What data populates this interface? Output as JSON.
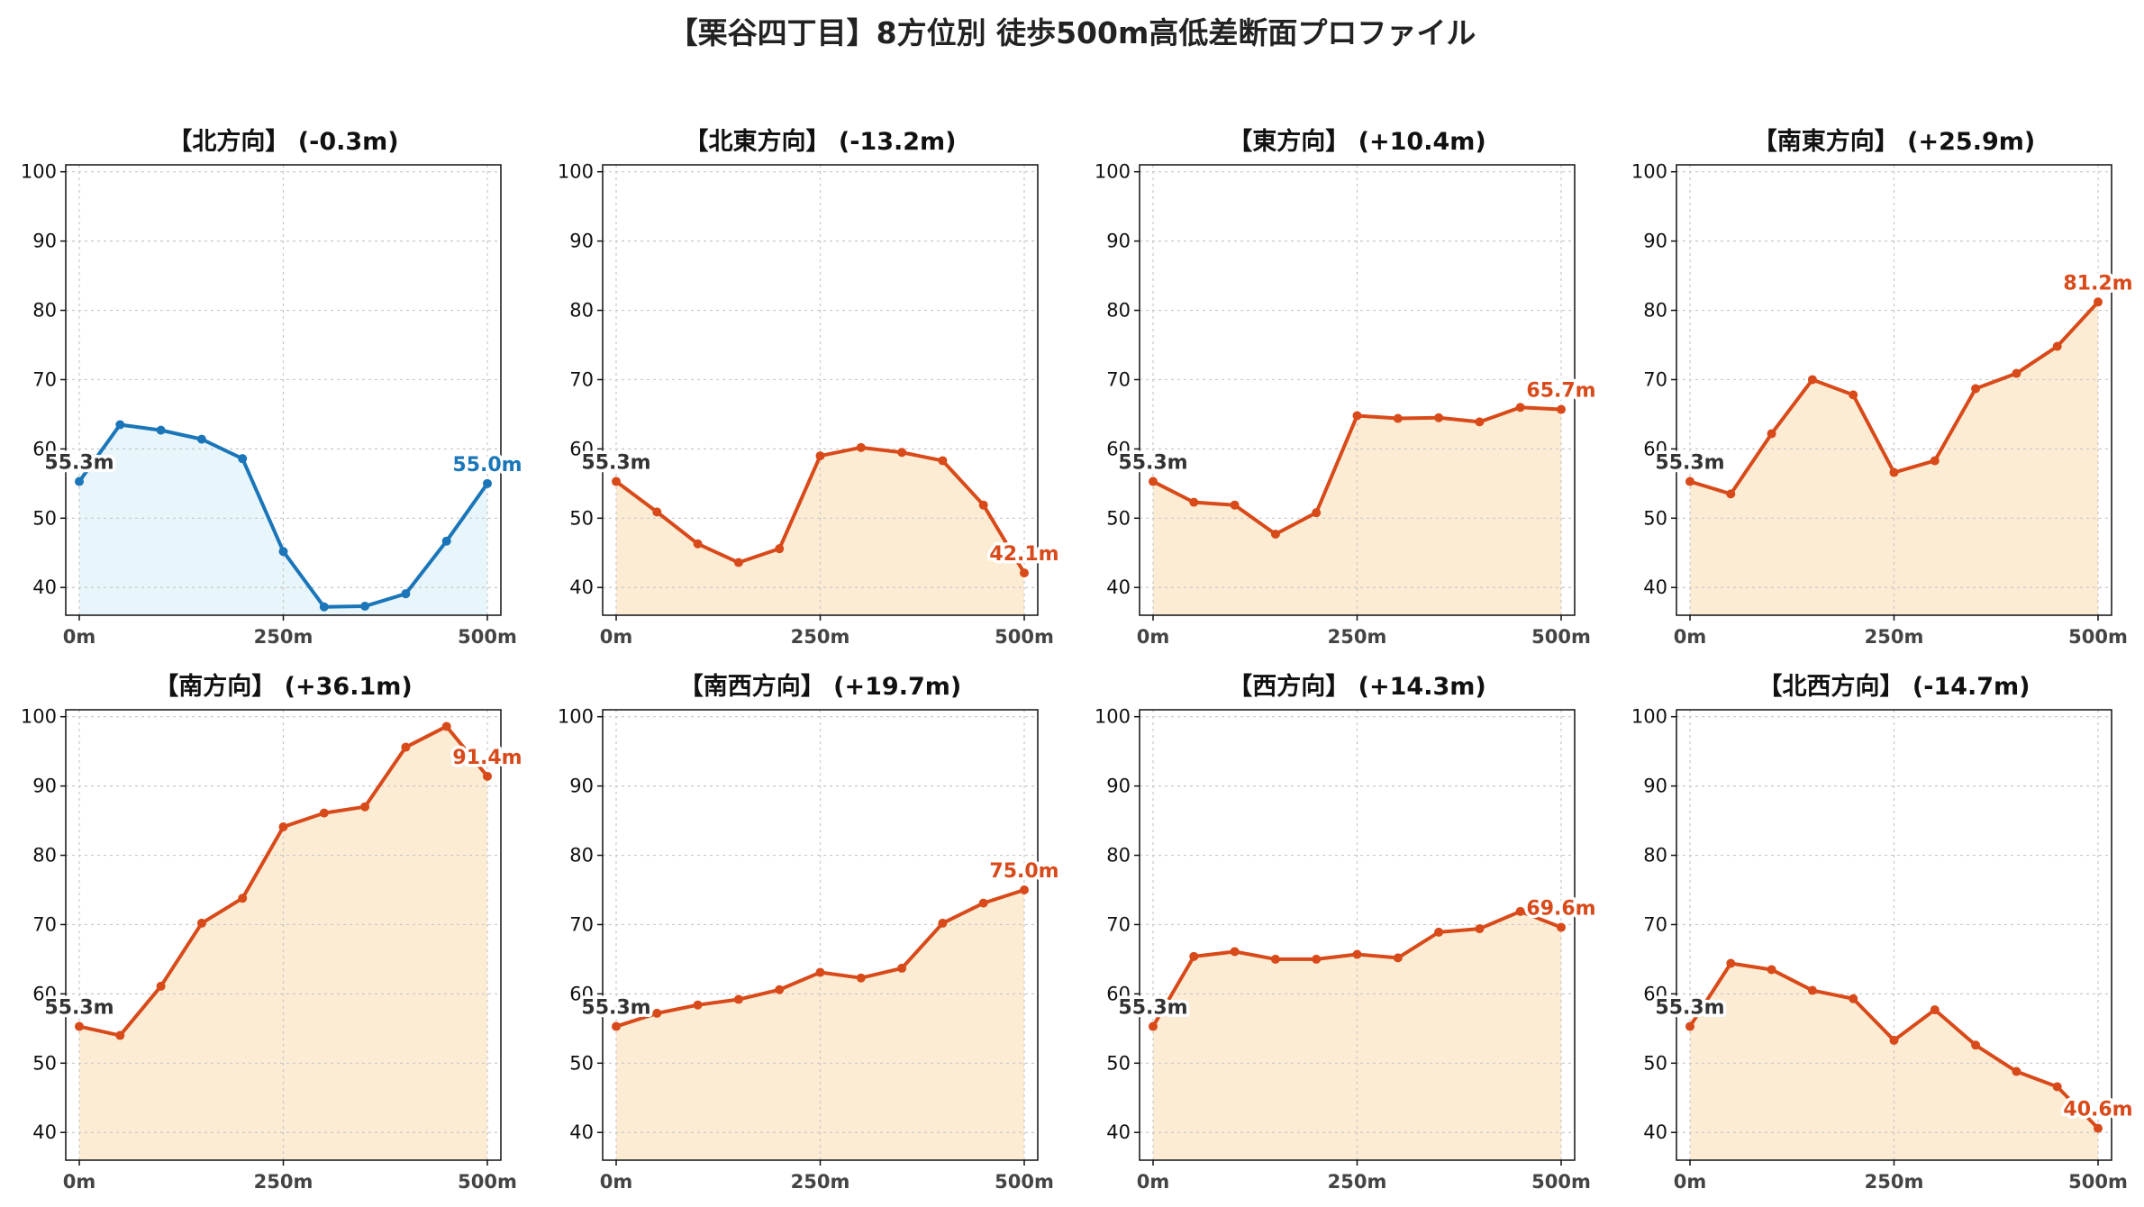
{
  "title": "【栗谷四丁目】8方位別 徒歩500m高低差断面プロファイル",
  "colors": {
    "down_line": "#1a76b8",
    "down_fill": "#e8f5fb",
    "up_line": "#d84a1a",
    "up_fill": "#fdecd4",
    "start_label": "#333333",
    "grid": "#c8c8c8"
  },
  "chart_data": [
    {
      "type": "area",
      "title": "【北方向】 (-0.3m)",
      "trend": "down",
      "x": [
        0,
        50,
        100,
        150,
        200,
        250,
        300,
        350,
        400,
        450,
        500
      ],
      "values": [
        55.3,
        63.5,
        62.7,
        61.4,
        58.6,
        45.2,
        37.2,
        37.3,
        39.1,
        46.7,
        55.0
      ],
      "start_label": "55.3m",
      "end_label": "55.0m",
      "ylim": [
        36,
        101
      ],
      "yticks": [
        40,
        50,
        60,
        70,
        80,
        90,
        100
      ],
      "xticks": [
        {
          "v": 0,
          "label": "0m"
        },
        {
          "v": 250,
          "label": "250m"
        },
        {
          "v": 500,
          "label": "500m"
        }
      ],
      "grid": true
    },
    {
      "type": "area",
      "title": "【北東方向】 (-13.2m)",
      "trend": "up",
      "x": [
        0,
        50,
        100,
        150,
        200,
        250,
        300,
        350,
        400,
        450,
        500
      ],
      "values": [
        55.3,
        50.9,
        46.3,
        43.6,
        45.6,
        59.0,
        60.2,
        59.5,
        58.3,
        51.9,
        42.1
      ],
      "start_label": "55.3m",
      "end_label": "42.1m",
      "ylim": [
        36,
        101
      ],
      "yticks": [
        40,
        50,
        60,
        70,
        80,
        90,
        100
      ],
      "xticks": [
        {
          "v": 0,
          "label": "0m"
        },
        {
          "v": 250,
          "label": "250m"
        },
        {
          "v": 500,
          "label": "500m"
        }
      ],
      "grid": true
    },
    {
      "type": "area",
      "title": "【東方向】 (+10.4m)",
      "trend": "up",
      "x": [
        0,
        50,
        100,
        150,
        200,
        250,
        300,
        350,
        400,
        450,
        500
      ],
      "values": [
        55.3,
        52.3,
        51.9,
        47.7,
        50.8,
        64.8,
        64.4,
        64.5,
        63.9,
        66.0,
        65.7
      ],
      "start_label": "55.3m",
      "end_label": "65.7m",
      "ylim": [
        36,
        101
      ],
      "yticks": [
        40,
        50,
        60,
        70,
        80,
        90,
        100
      ],
      "xticks": [
        {
          "v": 0,
          "label": "0m"
        },
        {
          "v": 250,
          "label": "250m"
        },
        {
          "v": 500,
          "label": "500m"
        }
      ],
      "grid": true
    },
    {
      "type": "area",
      "title": "【南東方向】 (+25.9m)",
      "trend": "up",
      "x": [
        0,
        50,
        100,
        150,
        200,
        250,
        300,
        350,
        400,
        450,
        500
      ],
      "values": [
        55.3,
        53.5,
        62.2,
        70.0,
        67.8,
        56.6,
        58.3,
        68.7,
        70.9,
        74.8,
        81.2
      ],
      "start_label": "55.3m",
      "end_label": "81.2m",
      "ylim": [
        36,
        101
      ],
      "yticks": [
        40,
        50,
        60,
        70,
        80,
        90,
        100
      ],
      "xticks": [
        {
          "v": 0,
          "label": "0m"
        },
        {
          "v": 250,
          "label": "250m"
        },
        {
          "v": 500,
          "label": "500m"
        }
      ],
      "grid": true
    },
    {
      "type": "area",
      "title": "【南方向】 (+36.1m)",
      "trend": "up",
      "x": [
        0,
        50,
        100,
        150,
        200,
        250,
        300,
        350,
        400,
        450,
        500
      ],
      "values": [
        55.3,
        54.0,
        61.1,
        70.2,
        73.8,
        84.1,
        86.1,
        87.0,
        95.6,
        98.6,
        91.4
      ],
      "start_label": "55.3m",
      "end_label": "91.4m",
      "ylim": [
        36,
        101
      ],
      "yticks": [
        40,
        50,
        60,
        70,
        80,
        90,
        100
      ],
      "xticks": [
        {
          "v": 0,
          "label": "0m"
        },
        {
          "v": 250,
          "label": "250m"
        },
        {
          "v": 500,
          "label": "500m"
        }
      ],
      "grid": true
    },
    {
      "type": "area",
      "title": "【南西方向】 (+19.7m)",
      "trend": "up",
      "x": [
        0,
        50,
        100,
        150,
        200,
        250,
        300,
        350,
        400,
        450,
        500
      ],
      "values": [
        55.3,
        57.2,
        58.4,
        59.2,
        60.6,
        63.1,
        62.3,
        63.7,
        70.2,
        73.1,
        75.0
      ],
      "start_label": "55.3m",
      "end_label": "75.0m",
      "ylim": [
        36,
        101
      ],
      "yticks": [
        40,
        50,
        60,
        70,
        80,
        90,
        100
      ],
      "xticks": [
        {
          "v": 0,
          "label": "0m"
        },
        {
          "v": 250,
          "label": "250m"
        },
        {
          "v": 500,
          "label": "500m"
        }
      ],
      "grid": true
    },
    {
      "type": "area",
      "title": "【西方向】 (+14.3m)",
      "trend": "up",
      "x": [
        0,
        50,
        100,
        150,
        200,
        250,
        300,
        350,
        400,
        450,
        500
      ],
      "values": [
        55.3,
        65.4,
        66.1,
        65.0,
        65.0,
        65.7,
        65.2,
        68.9,
        69.4,
        71.9,
        69.6
      ],
      "start_label": "55.3m",
      "end_label": "69.6m",
      "ylim": [
        36,
        101
      ],
      "yticks": [
        40,
        50,
        60,
        70,
        80,
        90,
        100
      ],
      "xticks": [
        {
          "v": 0,
          "label": "0m"
        },
        {
          "v": 250,
          "label": "250m"
        },
        {
          "v": 500,
          "label": "500m"
        }
      ],
      "grid": true
    },
    {
      "type": "area",
      "title": "【北西方向】 (-14.7m)",
      "trend": "up",
      "x": [
        0,
        50,
        100,
        150,
        200,
        250,
        300,
        350,
        400,
        450,
        500
      ],
      "values": [
        55.3,
        64.4,
        63.5,
        60.5,
        59.3,
        53.3,
        57.7,
        52.6,
        48.8,
        46.6,
        40.6
      ],
      "start_label": "55.3m",
      "end_label": "40.6m",
      "ylim": [
        36,
        101
      ],
      "yticks": [
        40,
        50,
        60,
        70,
        80,
        90,
        100
      ],
      "xticks": [
        {
          "v": 0,
          "label": "0m"
        },
        {
          "v": 250,
          "label": "250m"
        },
        {
          "v": 500,
          "label": "500m"
        }
      ],
      "grid": true
    }
  ]
}
